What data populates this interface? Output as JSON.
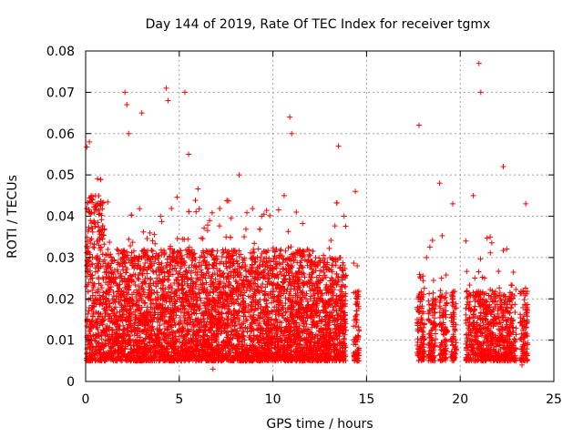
{
  "chart_data": {
    "type": "scatter",
    "title": "Day 144 of 2019, Rate Of TEC Index for receiver tgmx",
    "xlabel": "GPS time / hours",
    "ylabel": "ROTI / TECUs",
    "xlim": [
      0,
      25
    ],
    "ylim": [
      0,
      0.08
    ],
    "xticks": [
      0,
      5,
      10,
      15,
      20,
      25
    ],
    "xtick_labels": [
      "0",
      "5",
      "10",
      "15",
      "20",
      "25"
    ],
    "yticks": [
      0,
      0.01,
      0.02,
      0.03,
      0.04,
      0.05,
      0.06,
      0.07,
      0.08
    ],
    "ytick_labels": [
      "0",
      "0.01",
      "0.02",
      "0.03",
      "0.04",
      "0.05",
      "0.06",
      "0.07",
      "0.08"
    ],
    "grid": true,
    "marker": "+",
    "color": "#ff0000",
    "series": [
      {
        "name": "ROTI",
        "x": [
          0.1,
          0.2,
          0.3,
          0.5,
          0.7,
          1.0,
          1.3,
          1.6,
          2.0,
          2.1,
          2.2,
          2.3,
          2.5,
          2.8,
          3.0,
          3.3,
          3.6,
          4.0,
          4.3,
          4.4,
          4.6,
          5.0,
          5.3,
          5.5,
          5.7,
          6.0,
          6.4,
          6.8,
          7.0,
          7.2,
          7.5,
          7.8,
          8.2,
          8.6,
          9.0,
          9.4,
          9.8,
          10.2,
          10.6,
          10.9,
          11.0,
          11.2,
          11.6,
          12.0,
          12.4,
          12.8,
          13.2,
          13.5,
          13.8,
          14.4,
          14.5,
          17.8,
          17.9,
          18.2,
          18.5,
          18.9,
          19.0,
          19.3,
          19.6,
          20.4,
          20.7,
          21.0,
          21.1,
          21.3,
          21.6,
          22.0,
          22.3,
          22.5,
          23.3,
          23.5
        ],
        "y": [
          0.015,
          0.058,
          0.045,
          0.02,
          0.033,
          0.012,
          0.025,
          0.018,
          0.03,
          0.07,
          0.067,
          0.06,
          0.02,
          0.015,
          0.065,
          0.025,
          0.01,
          0.04,
          0.071,
          0.068,
          0.02,
          0.012,
          0.07,
          0.055,
          0.03,
          0.018,
          0.025,
          0.003,
          0.014,
          0.02,
          0.035,
          0.012,
          0.05,
          0.022,
          0.015,
          0.04,
          0.025,
          0.018,
          0.045,
          0.064,
          0.06,
          0.03,
          0.012,
          0.02,
          0.028,
          0.015,
          0.02,
          0.057,
          0.04,
          0.046,
          0.028,
          0.062,
          0.01,
          0.03,
          0.006,
          0.048,
          0.025,
          0.012,
          0.043,
          0.015,
          0.045,
          0.077,
          0.07,
          0.025,
          0.035,
          0.01,
          0.052,
          0.018,
          0.004,
          0.043
        ]
      }
    ]
  }
}
